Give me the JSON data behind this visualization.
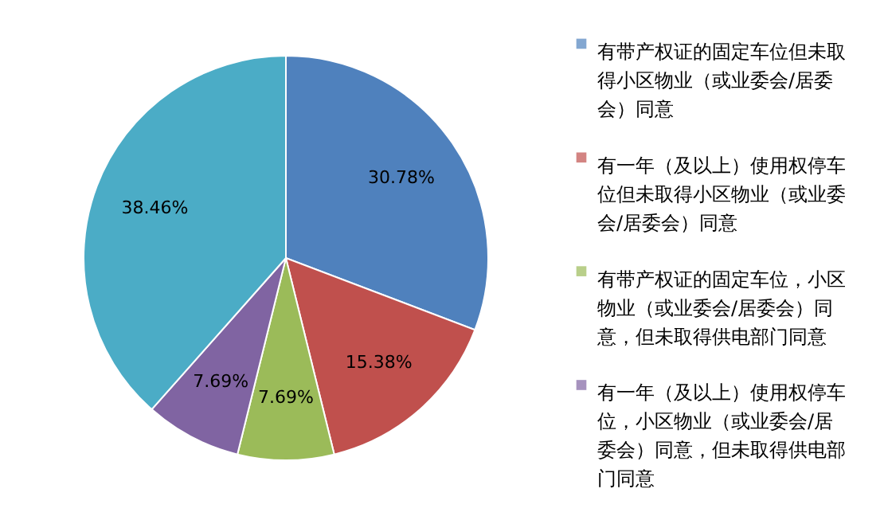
{
  "chart_data": {
    "type": "pie",
    "categories": [
      "有带产权证的固定车位但未取得小区物业（或业委会/居委会）同意",
      "有一年（及以上）使用权停车位但未取得小区物业（或业委会/居委会）同意",
      "有带产权证的固定车位，小区物业（或业委会/居委会）同意，但未取得供电部门同意",
      "有一年（及以上）使用权停车位，小区物业（或业委会/居委会）同意，但未取得供电部门同意",
      null
    ],
    "values": [
      30.78,
      15.38,
      7.69,
      7.69,
      38.46
    ],
    "colors": [
      "#4f81bd",
      "#c0504d",
      "#9bbb59",
      "#8064a2",
      "#4bacc6"
    ],
    "value_labels": [
      "30.78%",
      "15.38%",
      "7.69%",
      "7.69%",
      "38.46%"
    ],
    "legend": "right"
  }
}
